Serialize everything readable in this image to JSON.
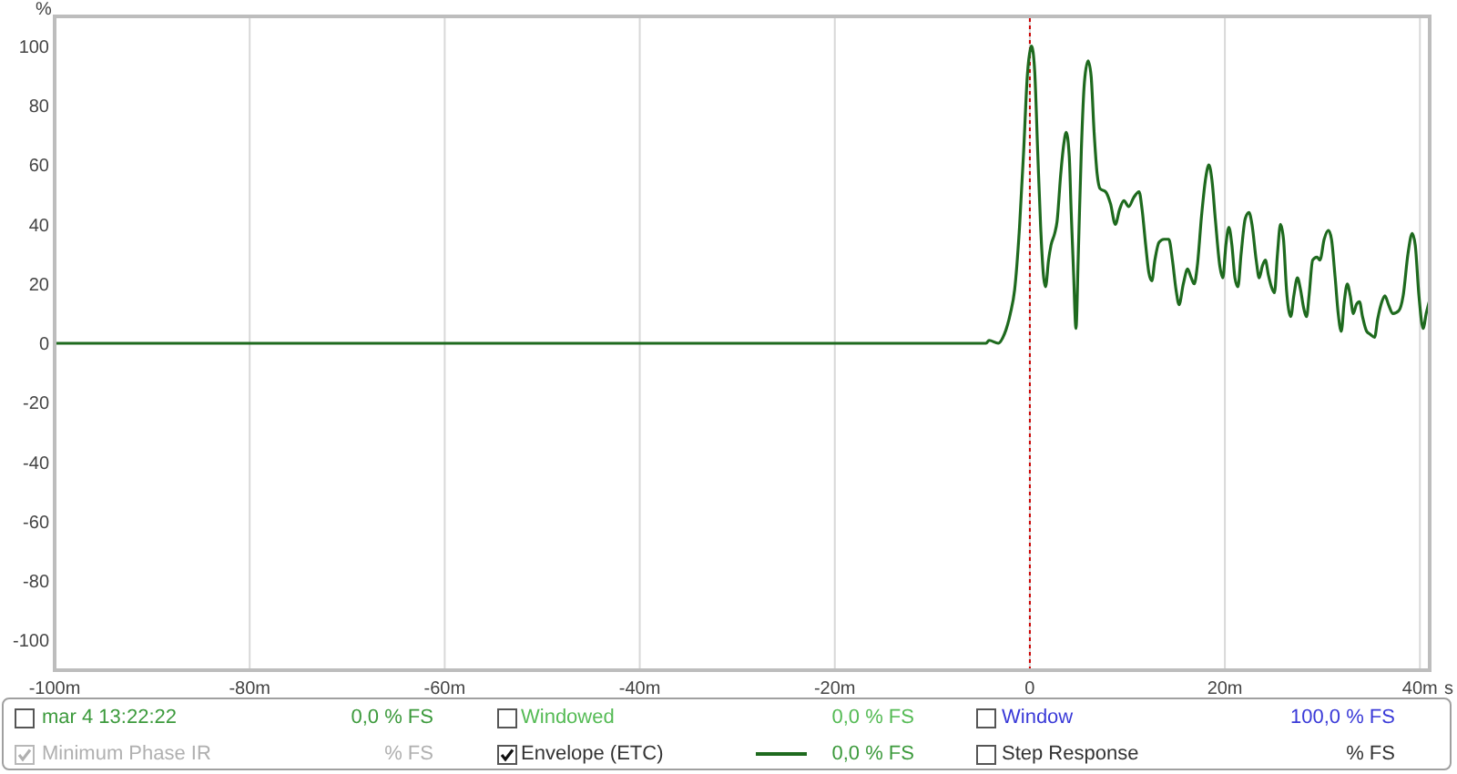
{
  "chart_data": {
    "type": "line",
    "xlabel": "s",
    "ylabel": "%",
    "x": [
      -100,
      -50,
      -10,
      -4.49,
      -4.18,
      -3.24,
      -2.62,
      -2,
      -1.56,
      -1.06,
      -0.63,
      -0.26,
      0.06,
      0.18,
      0.49,
      0.8,
      1.11,
      1.42,
      1.61,
      1.92,
      2.17,
      2.55,
      2.79,
      3.17,
      3.48,
      3.73,
      4.04,
      4.23,
      4.48,
      4.73,
      4.97,
      5.28,
      5.6,
      5.97,
      6.28,
      6.59,
      6.9,
      7.21,
      7.77,
      8.27,
      8.77,
      9.2,
      9.64,
      10.14,
      10.64,
      11.2,
      11.51,
      11.88,
      12.19,
      12.51,
      12.82,
      13.25,
      13.75,
      14.25,
      14.62,
      14.99,
      15.3,
      15.74,
      16.18,
      16.55,
      16.86,
      17.17,
      17.61,
      18.05,
      18.36,
      18.67,
      19.04,
      19.48,
      19.79,
      20.1,
      20.41,
      20.72,
      21.03,
      21.34,
      21.66,
      22.09,
      22.47,
      22.78,
      23.21,
      23.52,
      23.84,
      24.15,
      24.46,
      24.77,
      25.08,
      25.39,
      25.7,
      26.01,
      26.32,
      26.76,
      27.07,
      27.44,
      27.76,
      28.07,
      28.38,
      28.63,
      29,
      29.44,
      29.75,
      30.18,
      30.62,
      30.93,
      31.31,
      31.62,
      31.93,
      32.24,
      32.55,
      32.86,
      33.17,
      33.48,
      33.8,
      34.11,
      34.54,
      34.91,
      35.35,
      35.66,
      36.1,
      36.41,
      36.78,
      37.22,
      37.84,
      38.28,
      38.77,
      39.21,
      39.52,
      39.9,
      40.33,
      40.64,
      40.95
    ],
    "series": [
      {
        "name": "Envelope (ETC)",
        "color": "#1e6a1e",
        "values": [
          0,
          0,
          0,
          0,
          1,
          0,
          3,
          10,
          18,
          39,
          65,
          90,
          99,
          100,
          92,
          65,
          39,
          22,
          19,
          28,
          33,
          37,
          41,
          57,
          67,
          71,
          63,
          45,
          24,
          5,
          30,
          65,
          88,
          95,
          90,
          71,
          57,
          52,
          51,
          47,
          40,
          45,
          48,
          46,
          49,
          51,
          45,
          33,
          24,
          21,
          28,
          34,
          35,
          35,
          28,
          18,
          13,
          20,
          25,
          22,
          20,
          26,
          43,
          56,
          60,
          55,
          41,
          26,
          22,
          33,
          39,
          33,
          22,
          19,
          30,
          42,
          44,
          40,
          28,
          22,
          26,
          28,
          23,
          19,
          17,
          30,
          40,
          35,
          18,
          9,
          16,
          22,
          18,
          12,
          9,
          16,
          28,
          29,
          28,
          35,
          38,
          35,
          22,
          10,
          4,
          14,
          20,
          16,
          10,
          13,
          14,
          9,
          4,
          3,
          2,
          8,
          14,
          16,
          13,
          10,
          11,
          16,
          30,
          37,
          33,
          16,
          5,
          10,
          14
        ]
      }
    ],
    "xlim": [
      -100,
      41
    ],
    "xticks": [
      {
        "value": -100,
        "label": "-100m"
      },
      {
        "value": -80,
        "label": "-80m"
      },
      {
        "value": -60,
        "label": "-60m"
      },
      {
        "value": -40,
        "label": "-40m"
      },
      {
        "value": -20,
        "label": "-20m"
      },
      0,
      {
        "value": 20,
        "label": "20m"
      },
      {
        "value": 40,
        "label": "40m"
      }
    ],
    "ylim": [
      -110,
      110
    ],
    "yticks": [
      -100,
      -80,
      -60,
      -40,
      -20,
      0,
      20,
      40,
      60,
      80,
      100
    ],
    "grid": true,
    "legend": "bottom",
    "marker": "none",
    "ref_lines": [
      {
        "axis": "x",
        "value": 0,
        "color": "#cc0000",
        "line_style": "dotted"
      }
    ],
    "annotations": [
      "mar 4 13:22:22",
      "0,0 % FS",
      "Windowed",
      "0,0 % FS",
      "Window",
      "100,0 % FS",
      "Minimum Phase IR",
      "% FS",
      "0,0 % FS",
      "Step Response",
      "% FS"
    ]
  }
}
